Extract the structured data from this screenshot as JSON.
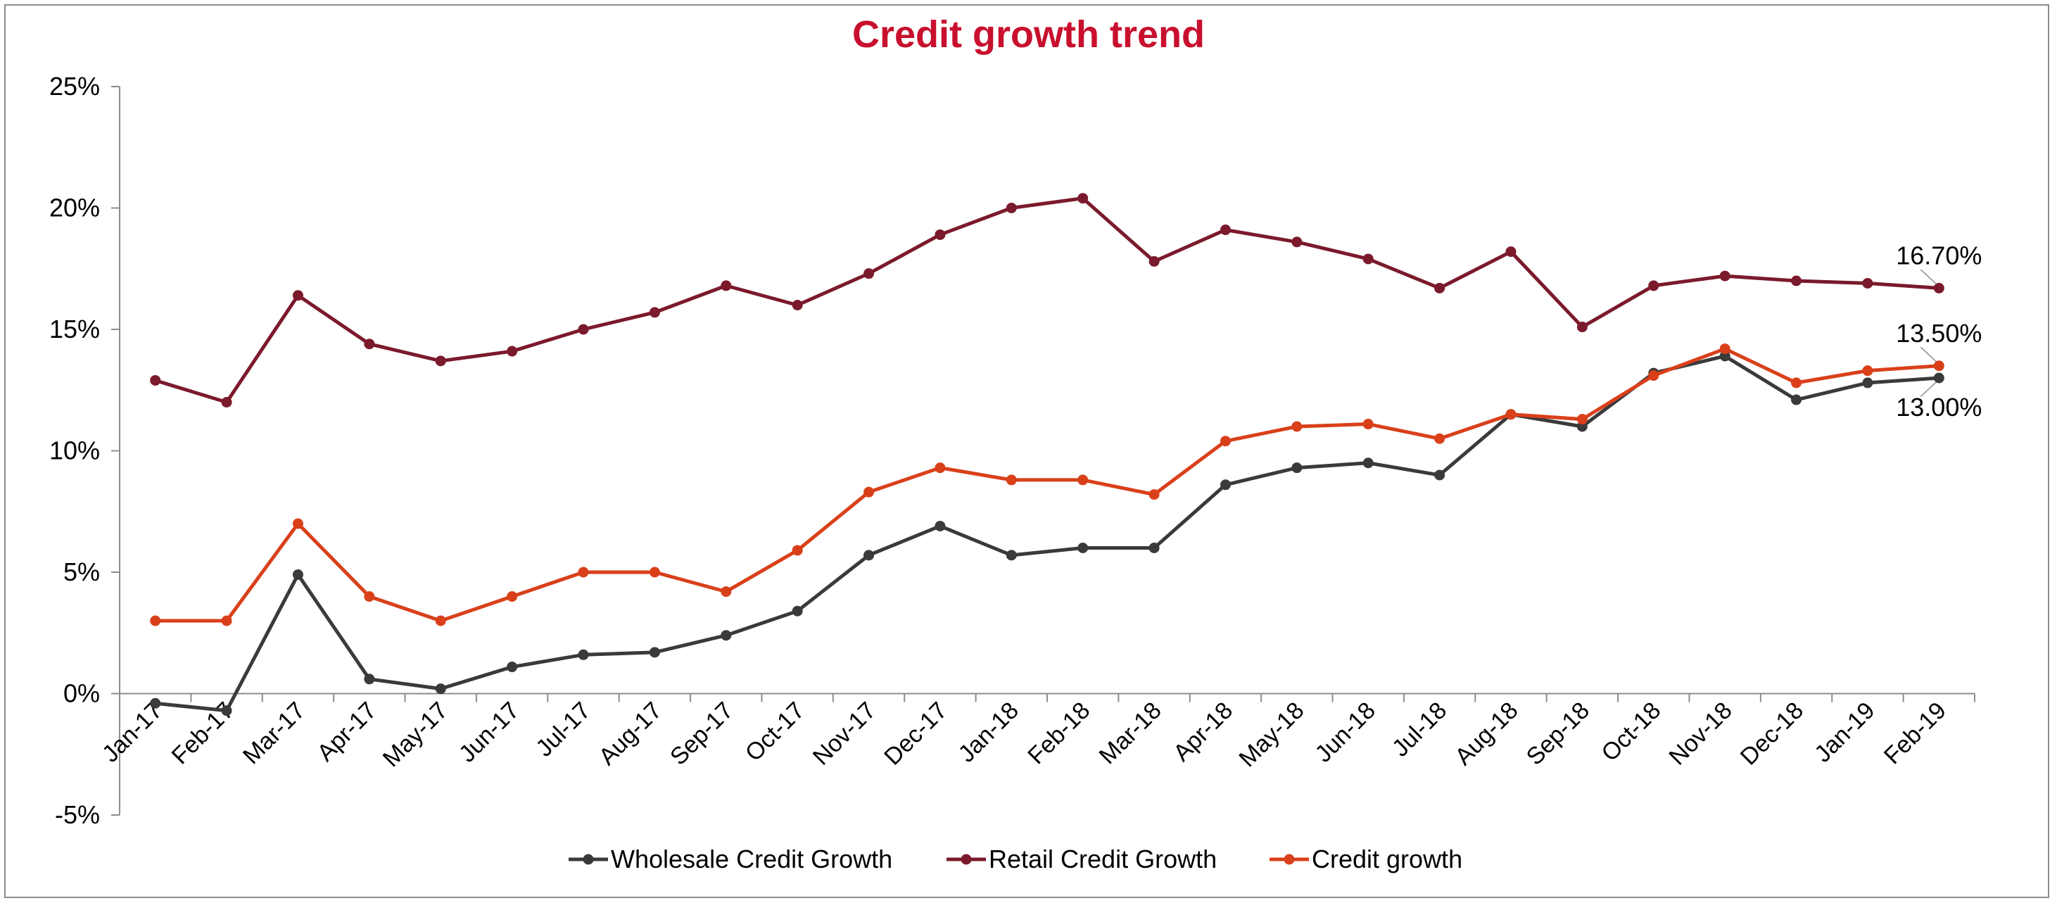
{
  "chart_data": {
    "type": "line",
    "title": "Credit growth trend",
    "xlabel": "",
    "ylabel": "",
    "categories": [
      "Jan-17",
      "Feb-17",
      "Mar-17",
      "Apr-17",
      "May-17",
      "Jun-17",
      "Jul-17",
      "Aug-17",
      "Sep-17",
      "Oct-17",
      "Nov-17",
      "Dec-17",
      "Jan-18",
      "Feb-18",
      "Mar-18",
      "Apr-18",
      "May-18",
      "Jun-18",
      "Jul-18",
      "Aug-18",
      "Sep-18",
      "Oct-18",
      "Nov-18",
      "Dec-18",
      "Jan-19",
      "Feb-19"
    ],
    "ylim": [
      -5,
      25
    ],
    "yticks": [
      -5,
      0,
      5,
      10,
      15,
      20,
      25
    ],
    "ytick_labels": [
      "-5%",
      "0%",
      "5%",
      "10%",
      "15%",
      "20%",
      "25%"
    ],
    "grid": false,
    "legend_position": "bottom",
    "series": [
      {
        "name": "Wholesale Credit Growth",
        "color": "#3a3a3a",
        "values": [
          -0.4,
          -0.7,
          4.9,
          0.6,
          0.2,
          1.1,
          1.6,
          1.7,
          2.4,
          3.4,
          5.7,
          6.9,
          5.7,
          6.0,
          6.0,
          8.6,
          9.3,
          9.5,
          9.0,
          11.5,
          11.0,
          13.2,
          13.9,
          12.1,
          12.8,
          13.0
        ]
      },
      {
        "name": "Retail Credit Growth",
        "color": "#7b1a2c",
        "values": [
          12.9,
          12.0,
          16.4,
          14.4,
          13.7,
          14.1,
          15.0,
          15.7,
          16.8,
          16.0,
          17.3,
          18.9,
          20.0,
          20.4,
          17.8,
          19.1,
          18.6,
          17.9,
          16.7,
          18.2,
          15.1,
          16.8,
          17.2,
          17.0,
          16.9,
          16.7
        ]
      },
      {
        "name": "Credit growth",
        "color": "#d9401a",
        "values": [
          3.0,
          3.0,
          7.0,
          4.0,
          3.0,
          4.0,
          5.0,
          5.0,
          4.2,
          5.9,
          8.3,
          9.3,
          8.8,
          8.8,
          8.2,
          10.4,
          11.0,
          11.1,
          10.5,
          11.5,
          11.3,
          13.1,
          14.2,
          12.8,
          13.3,
          13.5
        ]
      }
    ],
    "annotations": [
      {
        "text": "16.70%",
        "series": 1,
        "index": 25
      },
      {
        "text": "13.50%",
        "series": 2,
        "index": 25
      },
      {
        "text": "13.00%",
        "series": 0,
        "index": 25
      }
    ]
  }
}
